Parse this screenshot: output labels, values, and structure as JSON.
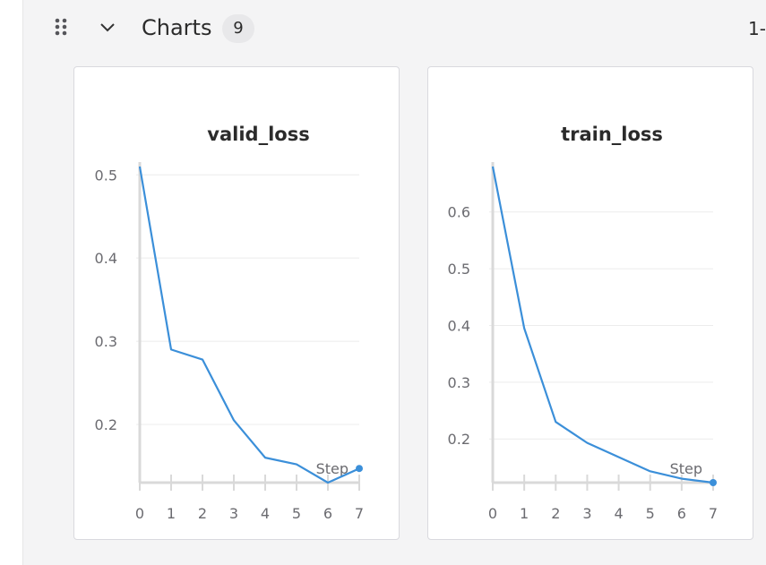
{
  "section": {
    "title": "Charts",
    "count": "9",
    "pager": "1-"
  },
  "icons": {
    "drag": "drag-handle-icon",
    "collapse": "chevron-down-icon"
  },
  "colors": {
    "line": "#3b8fd9",
    "grid": "#ececec",
    "axis": "#d9d9d9",
    "background": "#f4f4f5"
  },
  "chart_data": [
    {
      "type": "line",
      "title": "valid_loss",
      "xlabel": "Step",
      "ylabel": "",
      "x": [
        0,
        1,
        2,
        3,
        4,
        5,
        6,
        7
      ],
      "y": [
        0.51,
        0.29,
        0.278,
        0.205,
        0.16,
        0.152,
        0.13,
        0.147
      ],
      "xlim": [
        0,
        7
      ],
      "ylim": [
        0.13,
        0.51
      ],
      "yticks": [
        0.2,
        0.3,
        0.4,
        0.5
      ],
      "yticklabels": [
        "0.2",
        "0.3",
        "0.4",
        "0.5"
      ],
      "xticks": [
        0,
        1,
        2,
        3,
        4,
        5,
        6,
        7
      ],
      "xticklabels": [
        "0",
        "1",
        "2",
        "3",
        "4",
        "5",
        "6",
        "7"
      ],
      "grid": true,
      "legend": "none"
    },
    {
      "type": "line",
      "title": "train_loss",
      "xlabel": "Step",
      "ylabel": "",
      "x": [
        0,
        1,
        2,
        3,
        4,
        5,
        6,
        7
      ],
      "y": [
        0.68,
        0.395,
        0.23,
        0.193,
        0.168,
        0.143,
        0.13,
        0.123
      ],
      "xlim": [
        0,
        7
      ],
      "ylim": [
        0.123,
        0.68
      ],
      "yticks": [
        0.2,
        0.3,
        0.4,
        0.5,
        0.6
      ],
      "yticklabels": [
        "0.2",
        "0.3",
        "0.4",
        "0.5",
        "0.6"
      ],
      "xticks": [
        0,
        1,
        2,
        3,
        4,
        5,
        6,
        7
      ],
      "xticklabels": [
        "0",
        "1",
        "2",
        "3",
        "4",
        "5",
        "6",
        "7"
      ],
      "grid": true,
      "legend": "none"
    }
  ]
}
